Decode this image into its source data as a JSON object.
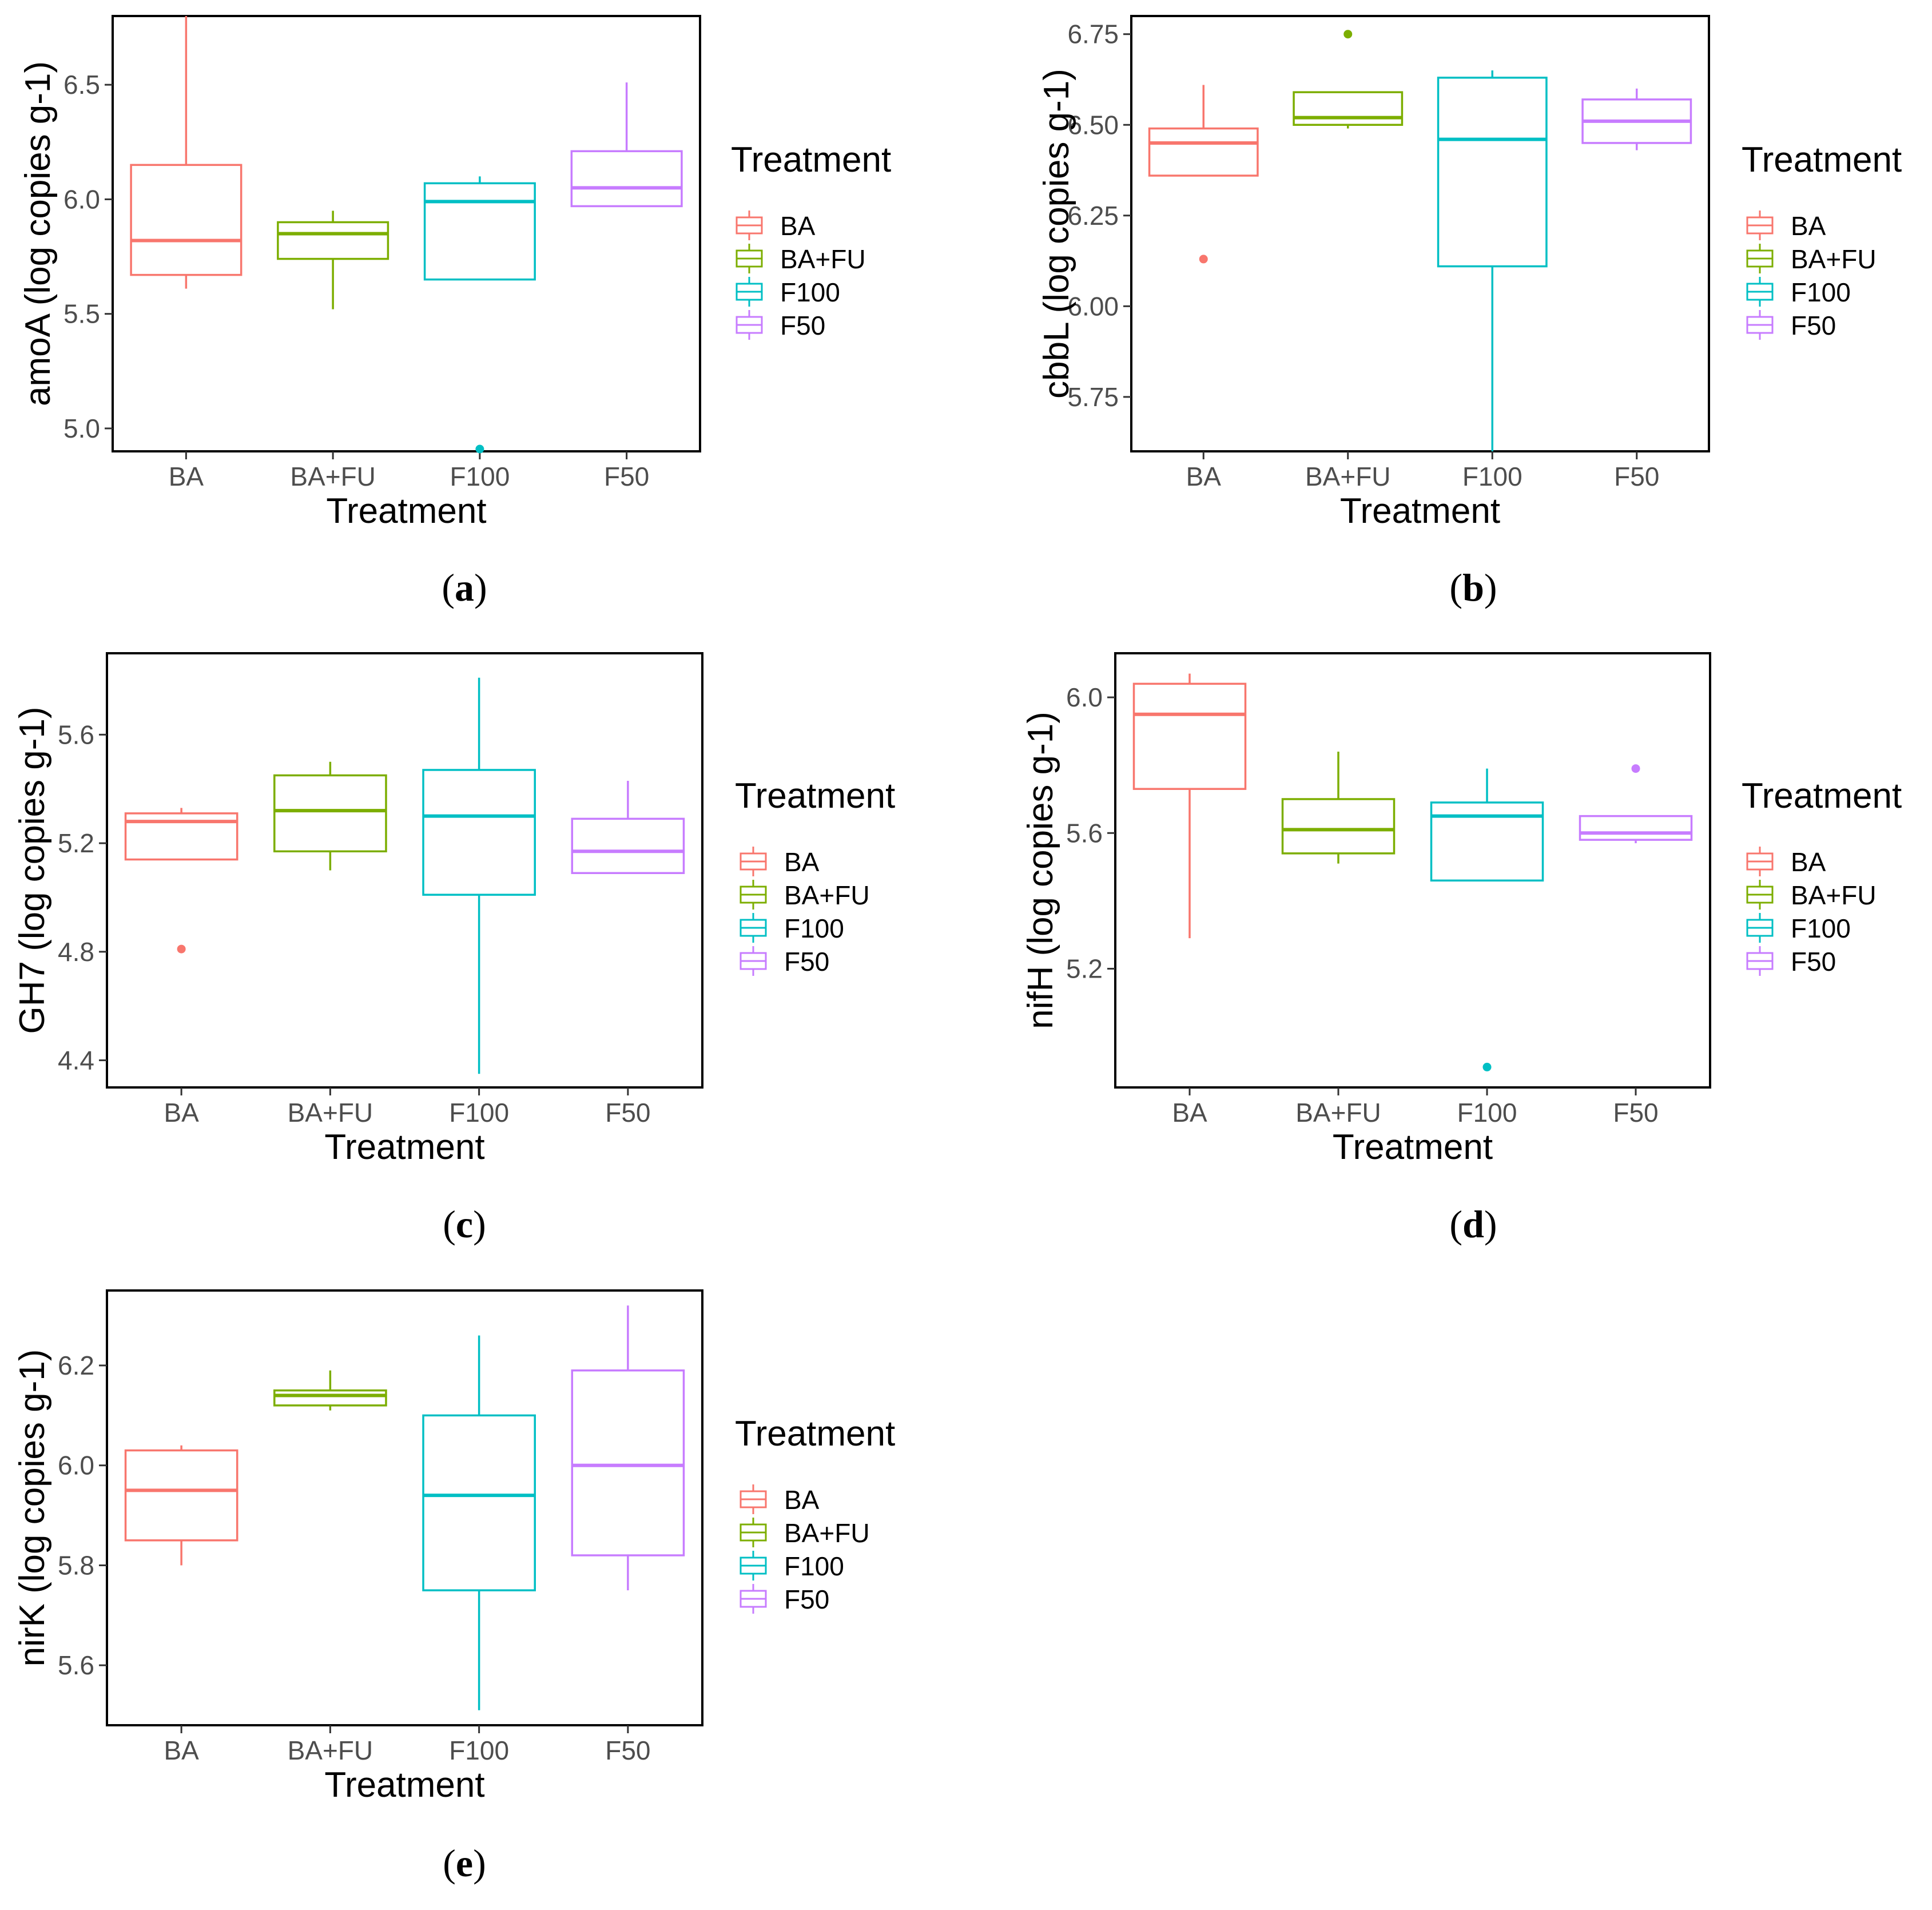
{
  "colors": {
    "BA": "#F8766D",
    "BA+FU": "#7CAE00",
    "F100": "#00BFC4",
    "F50": "#C77CFF",
    "axis": "#000000",
    "tick_text": "#4d4d4d"
  },
  "chart_data": [
    {
      "type": "box",
      "panel_label": "a",
      "xlabel": "Treatment",
      "ylabel": "amoA (log copies g-1)",
      "legend_title": "Treatment",
      "categories": [
        "BA",
        "BA+FU",
        "F100",
        "F50"
      ],
      "ylim": [
        4.9,
        6.8
      ],
      "yticks": [
        5.0,
        5.5,
        6.0,
        6.5
      ],
      "ytick_labels": [
        "5.0",
        "5.5",
        "6.0",
        "6.5"
      ],
      "boxes": [
        {
          "name": "BA",
          "min": 5.61,
          "q1": 5.67,
          "median": 5.82,
          "q3": 6.15,
          "max": 6.8,
          "outliers": []
        },
        {
          "name": "BA+FU",
          "min": 5.52,
          "q1": 5.74,
          "median": 5.85,
          "q3": 5.9,
          "max": 5.95,
          "outliers": []
        },
        {
          "name": "F100",
          "min": 5.65,
          "q1": 5.65,
          "median": 5.99,
          "q3": 6.07,
          "max": 6.1,
          "outliers": [
            4.91
          ]
        },
        {
          "name": "F50",
          "min": 5.97,
          "q1": 5.97,
          "median": 6.05,
          "q3": 6.21,
          "max": 6.51,
          "outliers": []
        }
      ]
    },
    {
      "type": "box",
      "panel_label": "b",
      "xlabel": "Treatment",
      "ylabel": "cbbL (log copies g-1)",
      "legend_title": "Treatment",
      "categories": [
        "BA",
        "BA+FU",
        "F100",
        "F50"
      ],
      "ylim": [
        5.6,
        6.8
      ],
      "yticks": [
        5.75,
        6.0,
        6.25,
        6.5,
        6.75
      ],
      "ytick_labels": [
        "5.75",
        "6.00",
        "6.25",
        "6.50",
        "6.75"
      ],
      "boxes": [
        {
          "name": "BA",
          "min": 6.36,
          "q1": 6.36,
          "median": 6.45,
          "q3": 6.49,
          "max": 6.61,
          "outliers": [
            6.13
          ]
        },
        {
          "name": "BA+FU",
          "min": 6.49,
          "q1": 6.5,
          "median": 6.52,
          "q3": 6.59,
          "max": 6.59,
          "outliers": [
            6.75
          ]
        },
        {
          "name": "F100",
          "min": 5.6,
          "q1": 6.11,
          "median": 6.46,
          "q3": 6.63,
          "max": 6.65,
          "outliers": []
        },
        {
          "name": "F50",
          "min": 6.43,
          "q1": 6.45,
          "median": 6.51,
          "q3": 6.57,
          "max": 6.6,
          "outliers": []
        }
      ]
    },
    {
      "type": "box",
      "panel_label": "c",
      "xlabel": "Treatment",
      "ylabel": "GH7 (log copies g-1)",
      "legend_title": "Treatment",
      "categories": [
        "BA",
        "BA+FU",
        "F100",
        "F50"
      ],
      "ylim": [
        4.3,
        5.9
      ],
      "yticks": [
        4.4,
        4.8,
        5.2,
        5.6
      ],
      "ytick_labels": [
        "4.4",
        "4.8",
        "5.2",
        "5.6"
      ],
      "boxes": [
        {
          "name": "BA",
          "min": 5.14,
          "q1": 5.14,
          "median": 5.28,
          "q3": 5.31,
          "max": 5.33,
          "outliers": [
            4.81
          ]
        },
        {
          "name": "BA+FU",
          "min": 5.1,
          "q1": 5.17,
          "median": 5.32,
          "q3": 5.45,
          "max": 5.5,
          "outliers": []
        },
        {
          "name": "F100",
          "min": 4.35,
          "q1": 5.01,
          "median": 5.3,
          "q3": 5.47,
          "max": 5.81,
          "outliers": []
        },
        {
          "name": "F50",
          "min": 5.09,
          "q1": 5.09,
          "median": 5.17,
          "q3": 5.29,
          "max": 5.43,
          "outliers": []
        }
      ]
    },
    {
      "type": "box",
      "panel_label": "d",
      "xlabel": "Treatment",
      "ylabel": "nifH (log copies g-1)",
      "legend_title": "Treatment",
      "categories": [
        "BA",
        "BA+FU",
        "F100",
        "F50"
      ],
      "ylim": [
        4.85,
        6.13
      ],
      "yticks": [
        5.2,
        5.6,
        6.0
      ],
      "ytick_labels": [
        "5.2",
        "5.6",
        "6.0"
      ],
      "boxes": [
        {
          "name": "BA",
          "min": 5.29,
          "q1": 5.73,
          "median": 5.95,
          "q3": 6.04,
          "max": 6.07,
          "outliers": []
        },
        {
          "name": "BA+FU",
          "min": 5.51,
          "q1": 5.54,
          "median": 5.61,
          "q3": 5.7,
          "max": 5.84,
          "outliers": []
        },
        {
          "name": "F100",
          "min": 5.46,
          "q1": 5.46,
          "median": 5.65,
          "q3": 5.69,
          "max": 5.79,
          "outliers": [
            4.91
          ]
        },
        {
          "name": "F50",
          "min": 5.57,
          "q1": 5.58,
          "median": 5.6,
          "q3": 5.65,
          "max": 5.65,
          "outliers": [
            5.79
          ]
        }
      ]
    },
    {
      "type": "box",
      "panel_label": "e",
      "xlabel": "Treatment",
      "ylabel": "nirK (log copies g-1)",
      "legend_title": "Treatment",
      "categories": [
        "BA",
        "BA+FU",
        "F100",
        "F50"
      ],
      "ylim": [
        5.48,
        6.35
      ],
      "yticks": [
        5.6,
        5.8,
        6.0,
        6.2
      ],
      "ytick_labels": [
        "5.6",
        "5.8",
        "6.0",
        "6.2"
      ],
      "boxes": [
        {
          "name": "BA",
          "min": 5.8,
          "q1": 5.85,
          "median": 5.95,
          "q3": 6.03,
          "max": 6.04,
          "outliers": []
        },
        {
          "name": "BA+FU",
          "min": 6.11,
          "q1": 6.12,
          "median": 6.14,
          "q3": 6.15,
          "max": 6.19,
          "outliers": []
        },
        {
          "name": "F100",
          "min": 5.51,
          "q1": 5.75,
          "median": 5.94,
          "q3": 6.1,
          "max": 6.26,
          "outliers": []
        },
        {
          "name": "F50",
          "min": 5.75,
          "q1": 5.82,
          "median": 6.0,
          "q3": 6.19,
          "max": 6.32,
          "outliers": []
        }
      ]
    }
  ]
}
